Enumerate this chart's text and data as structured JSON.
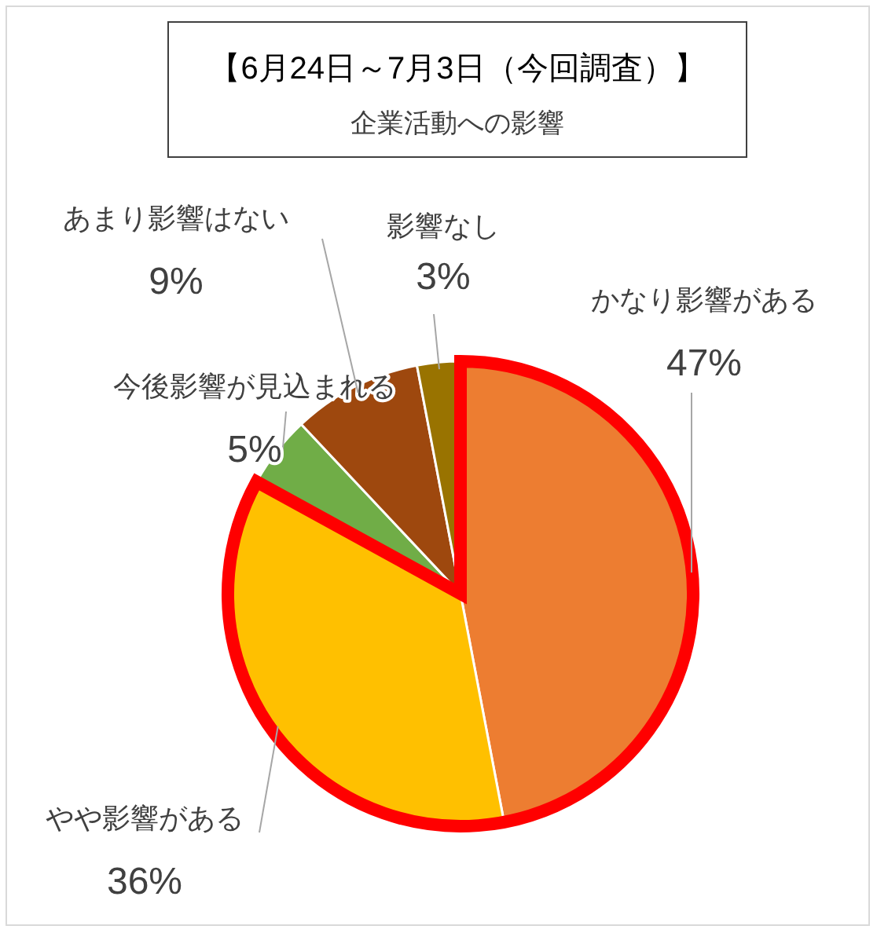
{
  "chart_data": {
    "type": "pie",
    "title": "【6月24日～7月3日（今回調査）】",
    "subtitle": "企業活動への影響",
    "categories": [
      "かなり影響がある",
      "やや影響がある",
      "今後影響が見込まれる",
      "あまり影響はない",
      "影響なし"
    ],
    "values": [
      47,
      36,
      5,
      9,
      3
    ],
    "colors": [
      "#ed7d31",
      "#ffc000",
      "#70ad47",
      "#9e480e",
      "#997300"
    ],
    "value_labels": [
      "47%",
      "36%",
      "5%",
      "9%",
      "3%"
    ]
  }
}
